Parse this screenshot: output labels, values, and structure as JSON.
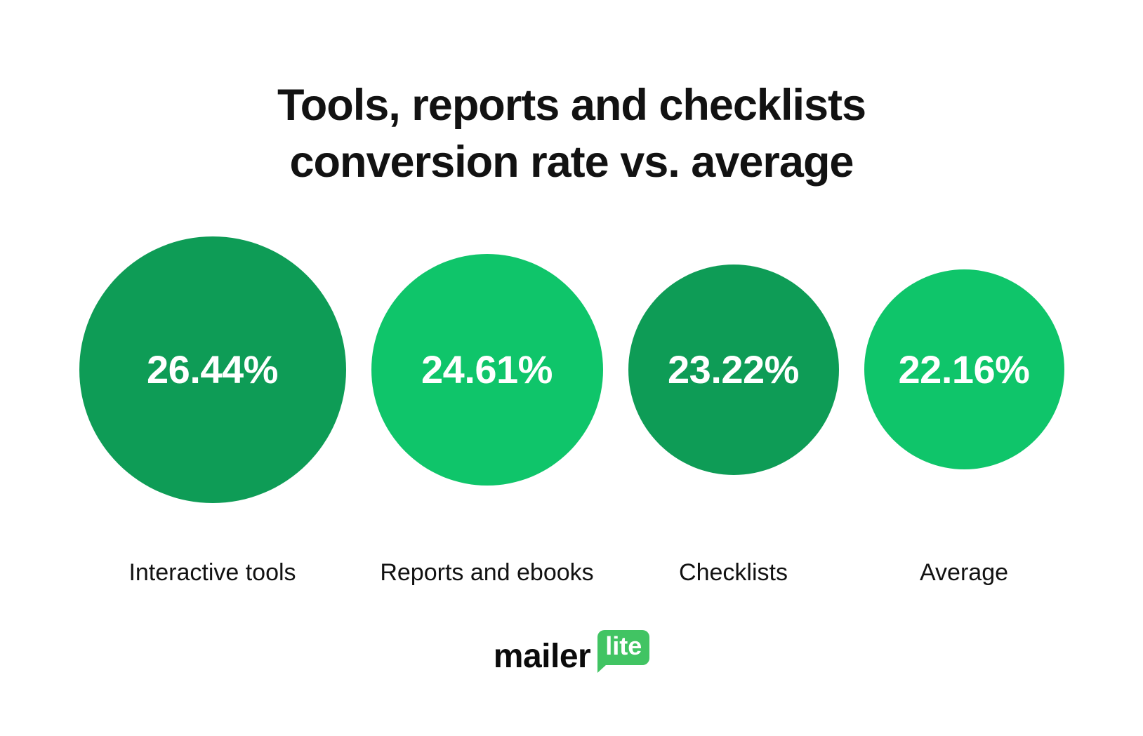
{
  "title": {
    "text": "Tools, reports and checklists\nconversion rate vs. average"
  },
  "chart_data": {
    "type": "bubble",
    "title": "Tools, reports and checklists conversion rate vs. average",
    "categories": [
      "Interactive tools",
      "Reports and ebooks",
      "Checklists",
      "Average"
    ],
    "values": [
      26.44,
      24.61,
      23.22,
      22.16
    ],
    "unit": "%",
    "value_labels": [
      "26.44%",
      "24.61%",
      "23.22%",
      "22.16%"
    ],
    "colors": [
      "#0E9C56",
      "#0FC56A",
      "#0E9C56",
      "#0FC56A"
    ],
    "encoding": "circle diameter scales with conversion rate",
    "legend_position": "none",
    "grid": false
  },
  "bubbles": [
    {
      "value": "26.44%",
      "label": "Interactive tools",
      "color": "#0E9C56",
      "diameter": 380
    },
    {
      "value": "24.61%",
      "label": "Reports and ebooks",
      "color": "#0FC56A",
      "diameter": 330
    },
    {
      "value": "23.22%",
      "label": "Checklists",
      "color": "#0E9C56",
      "diameter": 300
    },
    {
      "value": "22.16%",
      "label": "Average",
      "color": "#0FC56A",
      "diameter": 285
    }
  ],
  "logo": {
    "wordmark": "mailer",
    "badge": "lite",
    "badge_color": "#41C463",
    "wordmark_color": "#0B0B0B"
  },
  "colors": {
    "background": "#FFFFFF",
    "title_text": "#121212",
    "label_text": "#121212",
    "value_text": "#FFFFFF",
    "dark_green": "#0E9C56",
    "light_green": "#0FC56A"
  }
}
